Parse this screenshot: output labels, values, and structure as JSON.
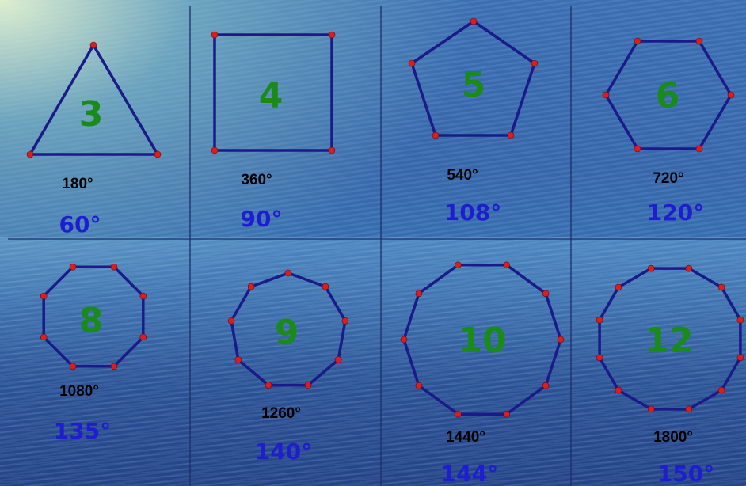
{
  "polygons": [
    {
      "sides": "3",
      "angle_sum": "180°",
      "interior_angle": "60°"
    },
    {
      "sides": "4",
      "angle_sum": "360°",
      "interior_angle": "90°"
    },
    {
      "sides": "5",
      "angle_sum": "540°",
      "interior_angle": "108°"
    },
    {
      "sides": "6",
      "angle_sum": "720°",
      "interior_angle": "120°"
    },
    {
      "sides": "8",
      "angle_sum": "1080°",
      "interior_angle": "135°"
    },
    {
      "sides": "9",
      "angle_sum": "1260°",
      "interior_angle": "140°"
    },
    {
      "sides": "10",
      "angle_sum": "1440°",
      "interior_angle": "144°"
    },
    {
      "sides": "12",
      "angle_sum": "1800°",
      "interior_angle": "150°"
    }
  ],
  "colors": {
    "outline": "#1a1a88",
    "vertex": "#d42020",
    "sides_label": "#1a8a1a",
    "angle_sum": "#000000",
    "interior_angle": "#1e1ed0",
    "grid": "#1c2e6a"
  }
}
